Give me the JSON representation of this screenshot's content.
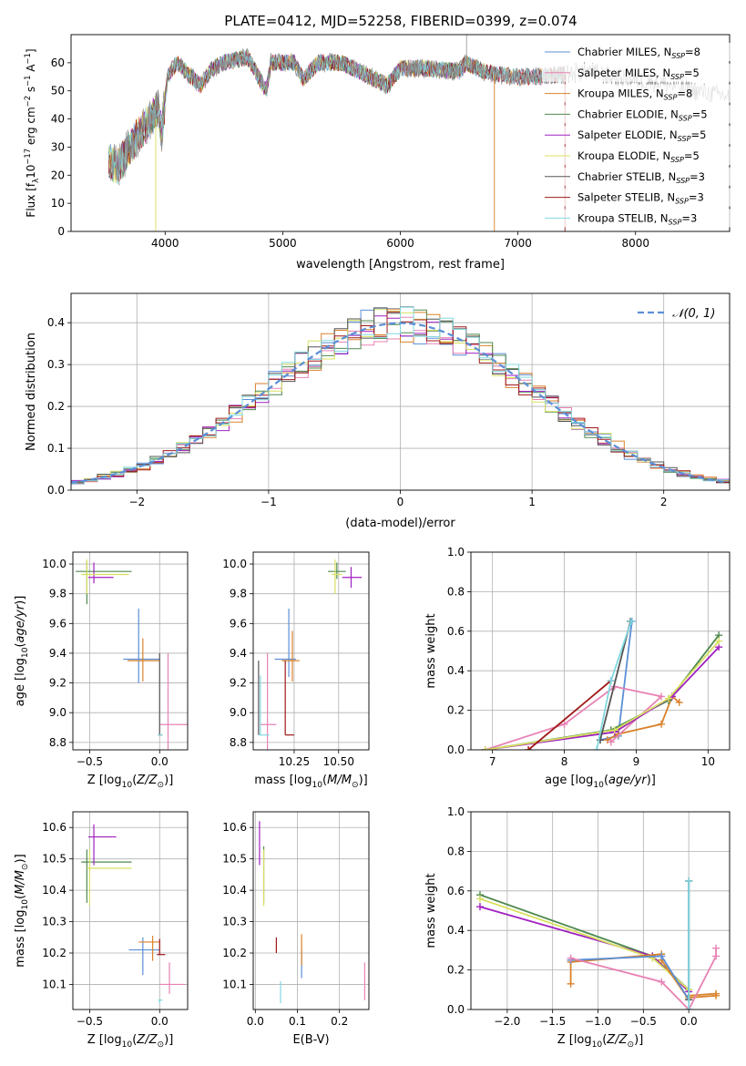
{
  "title": "PLATE=0412, MJD=52258, FIBERID=0399, z=0.074",
  "colors": {
    "Chabrier MILES": "#5b8fd6",
    "Salpeter MILES": "#e882b4",
    "Kroupa MILES": "#d9822b",
    "Chabrier ELODIE": "#4f8a4f",
    "Salpeter ELODIE": "#a020c0",
    "Kroupa ELODIE": "#d8e060",
    "Chabrier STELIB": "#555555",
    "Salpeter STELIB": "#a01818",
    "Kroupa STELIB": "#80d8e0"
  },
  "chart_data": [
    {
      "id": "spectrum",
      "type": "line",
      "xlabel": "wavelength [Angstrom, rest frame]",
      "ylabel": "Flux [f_λ10^-17 erg cm^-2 s^-1 A^-1]",
      "xlim": [
        3200,
        8800
      ],
      "ylim": [
        0,
        70
      ],
      "xticks": [
        4000,
        5000,
        6000,
        7000,
        8000
      ],
      "yticks": [
        0,
        10,
        20,
        30,
        40,
        50,
        60
      ],
      "grid": false,
      "legend_position": "top-right",
      "data_color": "#909090",
      "legend": [
        {
          "name": "Chabrier MILES",
          "sub": "8"
        },
        {
          "name": "Salpeter MILES",
          "sub": "5"
        },
        {
          "name": "Kroupa MILES",
          "sub": "8"
        },
        {
          "name": "Chabrier ELODIE",
          "sub": "5"
        },
        {
          "name": "Salpeter ELODIE",
          "sub": "5"
        },
        {
          "name": "Kroupa ELODIE",
          "sub": "5"
        },
        {
          "name": "Chabrier STELIB",
          "sub": "3"
        },
        {
          "name": "Salpeter STELIB",
          "sub": "3"
        },
        {
          "name": "Kroupa STELIB",
          "sub": "3"
        }
      ],
      "continuum_points": [
        [
          3520,
          25
        ],
        [
          3600,
          23
        ],
        [
          3700,
          30
        ],
        [
          3800,
          36
        ],
        [
          3880,
          40
        ],
        [
          3940,
          44
        ],
        [
          3970,
          35
        ],
        [
          4020,
          55
        ],
        [
          4100,
          60
        ],
        [
          4200,
          56
        ],
        [
          4300,
          52
        ],
        [
          4400,
          58
        ],
        [
          4500,
          60
        ],
        [
          4700,
          62
        ],
        [
          4860,
          50
        ],
        [
          4900,
          60
        ],
        [
          5100,
          60
        ],
        [
          5175,
          54
        ],
        [
          5300,
          60
        ],
        [
          5500,
          60
        ],
        [
          5890,
          52
        ],
        [
          6000,
          58
        ],
        [
          6200,
          58
        ],
        [
          6500,
          57
        ],
        [
          6563,
          60
        ],
        [
          6700,
          57
        ],
        [
          6800,
          56
        ],
        [
          7000,
          55
        ],
        [
          7200,
          55
        ],
        [
          7400,
          56
        ],
        [
          7600,
          57
        ],
        [
          7800,
          55
        ],
        [
          8000,
          54
        ],
        [
          8200,
          53
        ],
        [
          8500,
          50
        ],
        [
          8800,
          48
        ]
      ]
    },
    {
      "id": "residuals",
      "type": "histogram",
      "xlabel": "(data-model)/error",
      "ylabel": "Normed distribution",
      "xlim": [
        -2.5,
        2.5
      ],
      "ylim": [
        0,
        0.47
      ],
      "xticks": [
        -2,
        -1,
        0,
        1,
        2
      ],
      "yticks": [
        0.0,
        0.1,
        0.2,
        0.3,
        0.4
      ],
      "grid": true,
      "legend_position": "top-right",
      "reference": {
        "label": "𝒩(0, 1)",
        "mean": 0,
        "sigma": 1,
        "color": "#5b8fd6"
      },
      "bin_width": 0.1
    },
    {
      "id": "age_vs_Z",
      "type": "errorbar",
      "xlabel": "Z [log10(Z/Z⊙)]",
      "ylabel": "age [log10(age/yr)]",
      "xlim": [
        -0.62,
        0.2
      ],
      "ylim": [
        8.75,
        10.08
      ],
      "xticks": [
        -0.5,
        0.0
      ],
      "yticks": [
        8.8,
        9.0,
        9.2,
        9.4,
        9.6,
        9.8,
        10.0
      ],
      "grid": true,
      "points": [
        {
          "model": "Chabrier MILES",
          "x": -0.15,
          "xlo": 0.11,
          "xhi": 0.15,
          "y": 9.36,
          "ylo": 0.16,
          "yhi": 0.34
        },
        {
          "model": "Kroupa MILES",
          "x": -0.12,
          "xlo": 0.11,
          "xhi": 0.12,
          "y": 9.35,
          "ylo": 0.14,
          "yhi": 0.15
        },
        {
          "model": "Salpeter MILES",
          "x": 0.06,
          "xlo": 0.06,
          "xhi": 0.16,
          "y": 8.92,
          "ylo": 0.2,
          "yhi": 0.48
        },
        {
          "model": "Chabrier ELODIE",
          "x": -0.52,
          "xlo": 0.08,
          "xhi": 0.32,
          "y": 9.95,
          "ylo": 0.22,
          "yhi": 0.07
        },
        {
          "model": "Salpeter ELODIE",
          "x": -0.47,
          "xlo": 0.04,
          "xhi": 0.14,
          "y": 9.91,
          "ylo": 0.04,
          "yhi": 0.1
        },
        {
          "model": "Kroupa ELODIE",
          "x": -0.52,
          "xlo": 0.04,
          "xhi": 0.3,
          "y": 9.93,
          "ylo": 0.13,
          "yhi": 0.1
        },
        {
          "model": "Chabrier STELIB",
          "x": 0.0,
          "xlo": 0.01,
          "xhi": 0.02,
          "y": 8.85,
          "ylo": 0.0,
          "yhi": 0.55
        },
        {
          "model": "Kroupa STELIB",
          "x": 0.0,
          "xlo": 0.01,
          "xhi": 0.02,
          "y": 8.85,
          "ylo": 0.0,
          "yhi": 0.0
        }
      ]
    },
    {
      "id": "age_vs_mass",
      "type": "errorbar",
      "xlabel": "mass [log10(M/M⊙)]",
      "ylabel": "",
      "xlim": [
        10.02,
        10.67
      ],
      "ylim": [
        8.75,
        10.08
      ],
      "xticks": [
        10.25,
        10.5
      ],
      "yticks": [
        8.8,
        9.0,
        9.2,
        9.4,
        9.6,
        9.8,
        10.0
      ],
      "grid": true,
      "points": [
        {
          "model": "Chabrier MILES",
          "x": 10.22,
          "xlo": 0.08,
          "xhi": 0.04,
          "y": 9.36,
          "ylo": 0.12,
          "yhi": 0.34
        },
        {
          "model": "Kroupa MILES",
          "x": 10.24,
          "xlo": 0.06,
          "xhi": 0.04,
          "y": 9.35,
          "ylo": 0.14,
          "yhi": 0.2
        },
        {
          "model": "Salpeter MILES",
          "x": 10.1,
          "xlo": 0.04,
          "xhi": 0.05,
          "y": 8.92,
          "ylo": 0.22,
          "yhi": 0.48
        },
        {
          "model": "Chabrier ELODIE",
          "x": 10.49,
          "xlo": 0.05,
          "xhi": 0.05,
          "y": 9.95,
          "ylo": 0.05,
          "yhi": 0.06
        },
        {
          "model": "Salpeter ELODIE",
          "x": 10.57,
          "xlo": 0.05,
          "xhi": 0.06,
          "y": 9.91,
          "ylo": 0.07,
          "yhi": 0.07
        },
        {
          "model": "Kroupa ELODIE",
          "x": 10.48,
          "xlo": 0.02,
          "xhi": 0.04,
          "y": 9.93,
          "ylo": 0.13,
          "yhi": 0.1
        },
        {
          "model": "Chabrier STELIB",
          "x": 10.05,
          "xlo": 0.0,
          "xhi": 0.0,
          "y": 8.85,
          "ylo": 0.0,
          "yhi": 0.5
        },
        {
          "model": "Salpeter STELIB",
          "x": 10.2,
          "xlo": 0.0,
          "xhi": 0.05,
          "y": 8.85,
          "ylo": 0.0,
          "yhi": 0.5
        },
        {
          "model": "Kroupa STELIB",
          "x": 10.06,
          "xlo": 0.01,
          "xhi": 0.05,
          "y": 8.85,
          "ylo": 0.0,
          "yhi": 0.4
        }
      ]
    },
    {
      "id": "weight_vs_age",
      "type": "line",
      "xlabel": "age [log10(age/yr)]",
      "ylabel": "mass weight",
      "xlim": [
        6.7,
        10.3
      ],
      "ylim": [
        0,
        1.0
      ],
      "xticks": [
        7,
        8,
        9,
        10
      ],
      "yticks": [
        0.0,
        0.2,
        0.4,
        0.6,
        0.8,
        1.0
      ],
      "grid": true,
      "series": [
        {
          "model": "Chabrier MILES",
          "points": [
            [
              8.5,
              0.05
            ],
            [
              8.75,
              0.07
            ],
            [
              8.94,
              0.65
            ]
          ]
        },
        {
          "model": "Kroupa MILES",
          "points": [
            [
              8.6,
              0.05
            ],
            [
              8.75,
              0.08
            ],
            [
              9.35,
              0.13
            ],
            [
              9.5,
              0.27
            ],
            [
              9.6,
              0.24
            ]
          ]
        },
        {
          "model": "Salpeter MILES",
          "points": [
            [
              6.9,
              0.0
            ],
            [
              8.0,
              0.13
            ],
            [
              8.7,
              0.32
            ],
            [
              9.35,
              0.27
            ],
            [
              8.65,
              0.04
            ]
          ]
        },
        {
          "model": "Chabrier ELODIE",
          "points": [
            [
              6.9,
              0.0
            ],
            [
              8.65,
              0.1
            ],
            [
              9.45,
              0.25
            ],
            [
              10.15,
              0.58
            ]
          ]
        },
        {
          "model": "Salpeter ELODIE",
          "points": [
            [
              6.9,
              0.0
            ],
            [
              8.7,
              0.09
            ],
            [
              9.5,
              0.27
            ],
            [
              10.15,
              0.52
            ]
          ]
        },
        {
          "model": "Kroupa ELODIE",
          "points": [
            [
              6.9,
              0.0
            ],
            [
              8.7,
              0.1
            ],
            [
              9.45,
              0.26
            ],
            [
              10.15,
              0.55
            ]
          ]
        },
        {
          "model": "Chabrier STELIB",
          "points": [
            [
              8.5,
              0.05
            ],
            [
              8.92,
              0.65
            ]
          ]
        },
        {
          "model": "Salpeter STELIB",
          "points": [
            [
              7.5,
              0.0
            ],
            [
              8.65,
              0.35
            ]
          ]
        },
        {
          "model": "Kroupa STELIB",
          "points": [
            [
              8.45,
              0.0
            ],
            [
              8.65,
              0.35
            ],
            [
              8.93,
              0.65
            ]
          ]
        }
      ]
    },
    {
      "id": "mass_vs_Z",
      "type": "errorbar",
      "xlabel": "Z [log10(Z/Z⊙)]",
      "ylabel": "mass [log10(M/M⊙)]",
      "xlim": [
        -0.62,
        0.2
      ],
      "ylim": [
        10.02,
        10.65
      ],
      "xticks": [
        -0.5,
        0.0
      ],
      "yticks": [
        10.1,
        10.2,
        10.3,
        10.4,
        10.5,
        10.6
      ],
      "grid": true,
      "points": [
        {
          "model": "Chabrier MILES",
          "x": -0.12,
          "xlo": 0.1,
          "xhi": 0.12,
          "y": 10.21,
          "ylo": 0.08,
          "yhi": 0.04
        },
        {
          "model": "Kroupa MILES",
          "x": -0.05,
          "xlo": 0.1,
          "xhi": 0.05,
          "y": 10.235,
          "ylo": 0.06,
          "yhi": 0.02
        },
        {
          "model": "Salpeter MILES",
          "x": 0.07,
          "xlo": 0.07,
          "xhi": 0.11,
          "y": 10.1,
          "ylo": 0.03,
          "yhi": 0.07
        },
        {
          "model": "Chabrier ELODIE",
          "x": -0.52,
          "xlo": 0.04,
          "xhi": 0.32,
          "y": 10.49,
          "ylo": 0.13,
          "yhi": 0.04
        },
        {
          "model": "Salpeter ELODIE",
          "x": -0.47,
          "xlo": 0.04,
          "xhi": 0.16,
          "y": 10.57,
          "ylo": 0.09,
          "yhi": 0.04
        },
        {
          "model": "Kroupa ELODIE",
          "x": -0.5,
          "xlo": 0.02,
          "xhi": 0.3,
          "y": 10.47,
          "ylo": 0.12,
          "yhi": 0.06
        },
        {
          "model": "Salpeter STELIB",
          "x": 0.0,
          "xlo": 0.02,
          "xhi": 0.04,
          "y": 10.195,
          "ylo": 0.0,
          "yhi": 0.05
        },
        {
          "model": "Kroupa STELIB",
          "x": 0.0,
          "xlo": 0.01,
          "xhi": 0.02,
          "y": 10.05,
          "ylo": 0.01,
          "yhi": 0.0
        }
      ]
    },
    {
      "id": "mass_vs_EBV",
      "type": "errorbar",
      "xlabel": "E(B-V)",
      "ylabel": "",
      "xlim": [
        -0.005,
        0.27
      ],
      "ylim": [
        10.02,
        10.65
      ],
      "xticks": [
        0.0,
        0.1,
        0.2
      ],
      "yticks": [
        10.1,
        10.2,
        10.3,
        10.4,
        10.5,
        10.6
      ],
      "grid": true,
      "points": [
        {
          "model": "Chabrier MILES",
          "x": 0.11,
          "xlo": 0.0,
          "xhi": 0.0,
          "y": 10.17,
          "ylo": 0.05,
          "yhi": 0.04
        },
        {
          "model": "Kroupa MILES",
          "x": 0.11,
          "xlo": 0.0,
          "xhi": 0.0,
          "y": 10.21,
          "ylo": 0.05,
          "yhi": 0.05
        },
        {
          "model": "Salpeter MILES",
          "x": 0.26,
          "xlo": 0.0,
          "xhi": 0.0,
          "y": 10.11,
          "ylo": 0.06,
          "yhi": 0.06
        },
        {
          "model": "Chabrier ELODIE",
          "x": 0.02,
          "xlo": 0.0,
          "xhi": 0.0,
          "y": 10.45,
          "ylo": 0.09,
          "yhi": 0.09
        },
        {
          "model": "Salpeter ELODIE",
          "x": 0.01,
          "xlo": 0.0,
          "xhi": 0.0,
          "y": 10.56,
          "ylo": 0.08,
          "yhi": 0.06
        },
        {
          "model": "Kroupa ELODIE",
          "x": 0.02,
          "xlo": 0.0,
          "xhi": 0.0,
          "y": 10.43,
          "ylo": 0.08,
          "yhi": 0.1
        },
        {
          "model": "Salpeter STELIB",
          "x": 0.05,
          "xlo": 0.0,
          "xhi": 0.0,
          "y": 10.22,
          "ylo": 0.02,
          "yhi": 0.03
        },
        {
          "model": "Kroupa STELIB",
          "x": 0.06,
          "xlo": 0.0,
          "xhi": 0.0,
          "y": 10.08,
          "ylo": 0.04,
          "yhi": 0.03
        }
      ]
    },
    {
      "id": "weight_vs_Z",
      "type": "line",
      "xlabel": "Z [log10(Z/Z⊙)]",
      "ylabel": "mass weight",
      "xlim": [
        -2.4,
        0.45
      ],
      "ylim": [
        0,
        1.0
      ],
      "xticks": [
        -2.0,
        -1.5,
        -1.0,
        -0.5,
        0.0
      ],
      "yticks": [
        0.0,
        0.2,
        0.4,
        0.6,
        0.8,
        1.0
      ],
      "grid": true,
      "series": [
        {
          "model": "Chabrier ELODIE",
          "points": [
            [
              -2.3,
              0.58
            ],
            [
              -0.4,
              0.27
            ],
            [
              0.0,
              0.1
            ]
          ]
        },
        {
          "model": "Salpeter ELODIE",
          "points": [
            [
              -2.3,
              0.52
            ],
            [
              -0.4,
              0.27
            ],
            [
              0.0,
              0.09
            ]
          ]
        },
        {
          "model": "Kroupa ELODIE",
          "points": [
            [
              -2.3,
              0.56
            ],
            [
              -0.4,
              0.26
            ],
            [
              0.0,
              0.1
            ]
          ]
        },
        {
          "model": "Kroupa MILES",
          "points": [
            [
              -1.3,
              0.13
            ],
            [
              -1.3,
              0.24
            ],
            [
              -0.3,
              0.28
            ],
            [
              -0.3,
              0.25
            ],
            [
              0.0,
              0.05
            ],
            [
              0.0,
              0.07
            ],
            [
              0.3,
              0.08
            ],
            [
              0.3,
              0.07
            ],
            [
              0.0,
              0.06
            ]
          ]
        },
        {
          "model": "Chabrier MILES",
          "points": [
            [
              -1.3,
              0.25
            ],
            [
              -0.3,
              0.27
            ],
            [
              0.0,
              0.05
            ],
            [
              0.0,
              0.65
            ]
          ]
        },
        {
          "model": "Salpeter MILES",
          "points": [
            [
              -1.3,
              0.26
            ],
            [
              -0.3,
              0.14
            ],
            [
              0.0,
              0.0
            ],
            [
              0.3,
              0.27
            ],
            [
              0.3,
              0.31
            ]
          ]
        },
        {
          "model": "Chabrier STELIB",
          "points": [
            [
              0.0,
              0.65
            ],
            [
              0.0,
              0.05
            ]
          ]
        },
        {
          "model": "Kroupa STELIB",
          "points": [
            [
              0.0,
              0.65
            ],
            [
              0.0,
              0.0
            ]
          ]
        }
      ]
    }
  ]
}
